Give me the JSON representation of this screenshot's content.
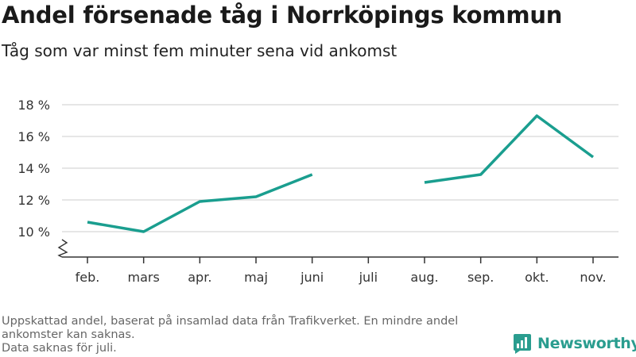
{
  "chart_data": {
    "type": "line",
    "title": "Andel försenade tåg i Norrköpings kommun",
    "subtitle": "Tåg som var minst fem minuter sena vid ankomst",
    "categories": [
      "feb.",
      "mars",
      "apr.",
      "maj",
      "juni",
      "juli",
      "aug.",
      "sep.",
      "okt.",
      "nov."
    ],
    "series": [
      {
        "values": [
          10.6,
          10.0,
          11.9,
          12.2,
          13.6,
          null,
          13.1,
          13.6,
          17.3,
          14.7
        ]
      }
    ],
    "y_ticks": [
      10,
      12,
      14,
      16,
      18
    ],
    "y_tick_labels": [
      "10 %",
      "12 %",
      "14 %",
      "16 %",
      "18 %"
    ],
    "ylim": [
      8.4,
      18
    ],
    "y_axis_break": true,
    "grid": true,
    "line_color": "#1a9e8f",
    "grid_color": "#dddddd",
    "axis_color": "#333333"
  },
  "footnote": {
    "lines": [
      "Uppskattad andel, baserat på insamlad data från Trafikverket. En mindre andel",
      "ankomster kan saknas.",
      "Data saknas för juli."
    ]
  },
  "brand": {
    "name": "Newsworthy",
    "icon": "newsworthy-logo-icon",
    "color": "#2a9d8f"
  }
}
